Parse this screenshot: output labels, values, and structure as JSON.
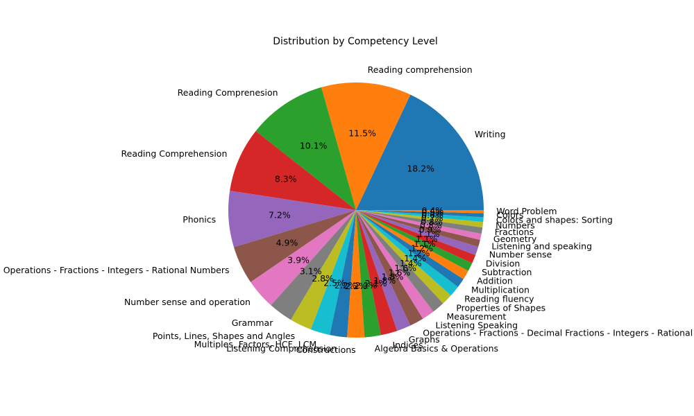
{
  "chart_data": {
    "type": "pie",
    "title": "Distribution by Competency Level",
    "start_angle_deg": 0,
    "direction": "counterclockwise",
    "colors": [
      "#1f77b4",
      "#ff7f0e",
      "#2ca02c",
      "#d62728",
      "#9467bd",
      "#8c564b",
      "#e377c2",
      "#7f7f7f",
      "#bcbd22",
      "#17becf"
    ],
    "slices": [
      {
        "label": "Writing",
        "value": 18.2
      },
      {
        "label": "Reading comprehension",
        "value": 11.5
      },
      {
        "label": "Reading Comprenesion",
        "value": 10.1
      },
      {
        "label": "Reading Comprehension",
        "value": 8.3
      },
      {
        "label": "Phonics",
        "value": 7.2
      },
      {
        "label": "Operations - Fractions - Integers - Rational Numbers",
        "value": 4.9
      },
      {
        "label": "Number sense and operation",
        "value": 3.9
      },
      {
        "label": "Grammar",
        "value": 3.1
      },
      {
        "label": "Points, Lines, Shapes and Angles",
        "value": 2.8
      },
      {
        "label": "Multiples, Factors, HCF, LCM",
        "value": 2.5
      },
      {
        "label": "Listening Comprehension",
        "value": 2.2
      },
      {
        "label": "Constructions",
        "value": 2.2
      },
      {
        "label": "Algebra Basics & Operations",
        "value": 2.1
      },
      {
        "label": "Indices",
        "value": 2.1
      },
      {
        "label": "Graphs",
        "value": 1.8
      },
      {
        "label": "Operations - Fractions - Decimal Fractions - Integers - Rational Numbers",
        "value": 1.8
      },
      {
        "label": "Listening Speaking",
        "value": 1.6
      },
      {
        "label": "Measurement",
        "value": 1.6
      },
      {
        "label": "Properties of Shapes",
        "value": 1.4
      },
      {
        "label": "Reading fluency",
        "value": 1.4
      },
      {
        "label": "Multiplication",
        "value": 1.2
      },
      {
        "label": "Addition",
        "value": 1.2
      },
      {
        "label": "Subtraction",
        "value": 1.1
      },
      {
        "label": "Division",
        "value": 1.1
      },
      {
        "label": "Number sense",
        "value": 1.1
      },
      {
        "label": "Listening and speaking",
        "value": 0.9
      },
      {
        "label": "Geometry",
        "value": 0.8
      },
      {
        "label": "Fractions",
        "value": 0.8
      },
      {
        "label": "Numbers",
        "value": 0.7
      },
      {
        "label": "Colors and shapes: Sorting",
        "value": 0.6
      },
      {
        "label": "Colors",
        "value": 0.5
      },
      {
        "label": "Word Problem",
        "value": 0.4
      }
    ]
  }
}
